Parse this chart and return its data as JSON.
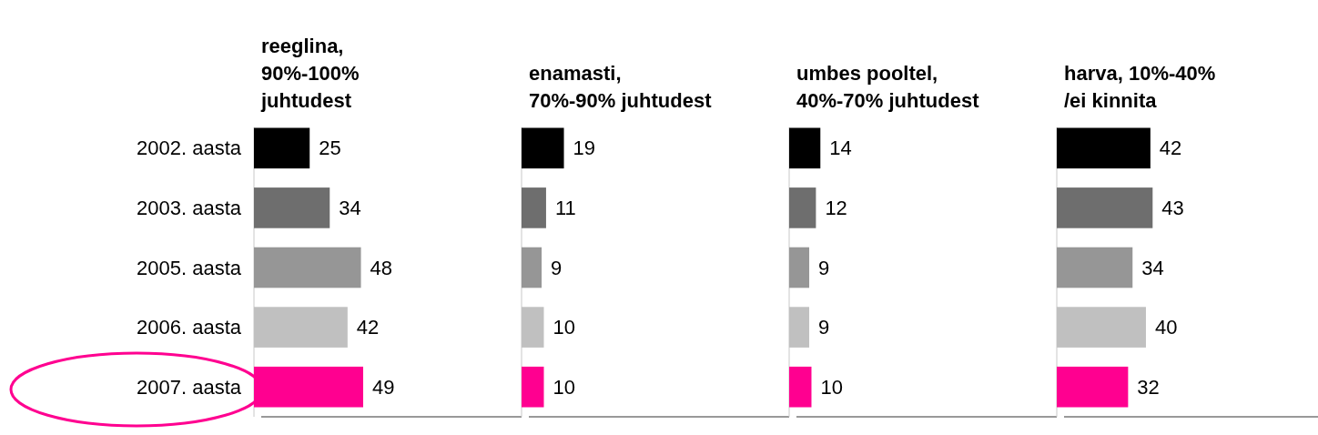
{
  "chart_data": [
    {
      "type": "bar",
      "orientation": "horizontal",
      "title": "reeglina,\n90%-100%\njuhtudest",
      "categories": [
        "2002. aasta",
        "2003. aasta",
        "2005. aasta",
        "2006. aasta",
        "2007. aasta"
      ],
      "values": [
        25,
        34,
        48,
        42,
        49
      ],
      "colors": [
        "#000000",
        "#6e6e6e",
        "#969696",
        "#c0c0c0",
        "#ff0090"
      ],
      "data_labels": true,
      "tick_labels": "y"
    },
    {
      "type": "bar",
      "orientation": "horizontal",
      "title": "enamasti,\n70%-90% juhtudest",
      "categories": [
        null,
        null,
        null,
        null,
        null
      ],
      "values": [
        19,
        11,
        9,
        10,
        10
      ],
      "colors": [
        "#000000",
        "#6e6e6e",
        "#969696",
        "#c0c0c0",
        "#ff0090"
      ],
      "data_labels": true,
      "tick_labels": false
    },
    {
      "type": "bar",
      "orientation": "horizontal",
      "title": "umbes pooltel,\n40%-70% juhtudest",
      "categories": [
        null,
        null,
        null,
        null,
        null
      ],
      "values": [
        14,
        12,
        9,
        9,
        10
      ],
      "colors": [
        "#000000",
        "#6e6e6e",
        "#969696",
        "#c0c0c0",
        "#ff0090"
      ],
      "data_labels": true,
      "tick_labels": false
    },
    {
      "type": "bar",
      "orientation": "horizontal",
      "title": "harva, 10%-40%\n/ei kinnita",
      "categories": [
        null,
        null,
        null,
        null,
        null
      ],
      "values": [
        42,
        43,
        34,
        40,
        32
      ],
      "colors": [
        "#000000",
        "#6e6e6e",
        "#969696",
        "#c0c0c0",
        "#ff0090"
      ],
      "data_labels": true,
      "tick_labels": false
    }
  ]
}
